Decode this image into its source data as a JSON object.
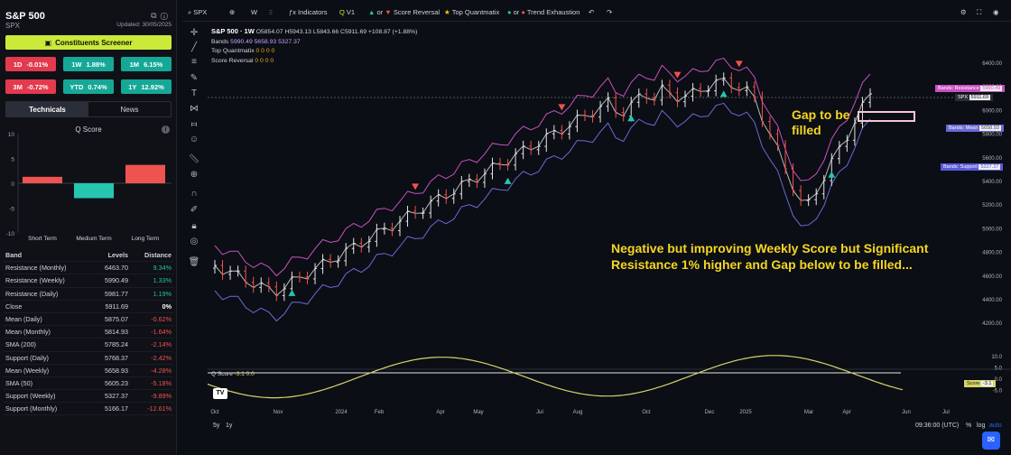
{
  "header": {
    "title": "S&P 500",
    "symbol": "SPX",
    "updated": "Updated: 30/05/2025"
  },
  "screener_label": "Constituents Screener",
  "performance": [
    {
      "period": "1D",
      "value": "-0.01%",
      "trend": "neg"
    },
    {
      "period": "1W",
      "value": "1.88%",
      "trend": "pos"
    },
    {
      "period": "1M",
      "value": "6.15%",
      "trend": "pos"
    },
    {
      "period": "3M",
      "value": "-0.72%",
      "trend": "neg"
    },
    {
      "period": "YTD",
      "value": "0.74%",
      "trend": "pos"
    },
    {
      "period": "1Y",
      "value": "12.92%",
      "trend": "pos"
    }
  ],
  "tabs": [
    {
      "label": "Technicals",
      "active": true
    },
    {
      "label": "News",
      "active": false
    }
  ],
  "qscore_panel": {
    "title": "Q Score",
    "y_ticks": [
      "10",
      "5",
      "0",
      "-5",
      "-10"
    ],
    "bars": [
      {
        "label": "Short Term",
        "value": 1.3,
        "color": "#ef5350"
      },
      {
        "label": "Medium Term",
        "value": -3.0,
        "color": "#26c6b0"
      },
      {
        "label": "Long Term",
        "value": 3.7,
        "color": "#ef5350"
      }
    ]
  },
  "table": {
    "headers": [
      "Band",
      "Levels",
      "Distance"
    ],
    "rows": [
      {
        "band": "Resistance (Monthly)",
        "level": "6463.70",
        "distance": "9.34%",
        "trend": "pos"
      },
      {
        "band": "Resistance (Weekly)",
        "level": "5990.49",
        "distance": "1.33%",
        "trend": "pos"
      },
      {
        "band": "Resistance (Daily)",
        "level": "5981.77",
        "distance": "1.19%",
        "trend": "pos"
      },
      {
        "band": "Close",
        "level": "5911.69",
        "distance": "0%",
        "trend": "zero"
      },
      {
        "band": "Mean (Daily)",
        "level": "5875.07",
        "distance": "-0.62%",
        "trend": "neg"
      },
      {
        "band": "Mean (Monthly)",
        "level": "5814.93",
        "distance": "-1.64%",
        "trend": "neg"
      },
      {
        "band": "SMA (200)",
        "level": "5785.24",
        "distance": "-2.14%",
        "trend": "neg"
      },
      {
        "band": "Support (Daily)",
        "level": "5768.37",
        "distance": "-2.42%",
        "trend": "neg"
      },
      {
        "band": "Mean (Weekly)",
        "level": "5658.93",
        "distance": "-4.28%",
        "trend": "neg"
      },
      {
        "band": "SMA (50)",
        "level": "5605.23",
        "distance": "-5.18%",
        "trend": "neg"
      },
      {
        "band": "Support (Weekly)",
        "level": "5327.37",
        "distance": "-9.89%",
        "trend": "neg"
      },
      {
        "band": "Support (Monthly)",
        "level": "5166.17",
        "distance": "-12.61%",
        "trend": "neg"
      }
    ]
  },
  "toolbar": {
    "symbol": "SPX",
    "interval": "W",
    "indicators": "Indicators",
    "version": "V1",
    "or1": "or",
    "score_reversal": "Score Reversal",
    "top_quantmatix": "Top Quantmatix",
    "or2": "or",
    "trend_exhaustion": "Trend Exhaustion"
  },
  "legend": {
    "title": "S&P 500 · 1W",
    "ohlc": "O5854.07 H5943.13 L5843.66 C5911.69 +108.87 (+1.88%)",
    "bands_label": "Bands",
    "bands_values": "5990.49  5658.93  5327.37",
    "top_quantmatix": "Top Quantmatix",
    "top_quantmatix_vals": "0  0  0  0",
    "score_reversal": "Score Reversal",
    "score_reversal_vals": "0  0  0  0"
  },
  "annotations": {
    "gap": "Gap to be filled",
    "main": "Negative but improving Weekly Score but Significant Resistance 1% higher and Gap below to be filled..."
  },
  "price_axis": [
    "6400.00",
    "6200.00",
    "6000.00",
    "5800.00",
    "5600.00",
    "5400.00",
    "5200.00",
    "5000.00",
    "4800.00",
    "4600.00",
    "4400.00",
    "4200.00"
  ],
  "price_tags": {
    "resistance_label": "Bands: Resistance",
    "resistance_value": "5990.49",
    "spx_label": "SPX",
    "spx_value": "5911.69",
    "mean_label": "Bands: Mean",
    "mean_value": "5658.93",
    "support_label": "Bands: Support",
    "support_value": "5327.37"
  },
  "oscillator": {
    "label": "Q Score",
    "values": "-3.1  0.0",
    "axis": [
      "10.0",
      "5.0",
      "0.0",
      "-5.0"
    ],
    "score_tag": "Score",
    "score_value": "-3.1"
  },
  "time_axis": [
    "Oct",
    "Nov",
    "2024",
    "Feb",
    "Apr",
    "May",
    "Jul",
    "Aug",
    "Oct",
    "Dec",
    "2025",
    "Mar",
    "Apr",
    "Jun",
    "Jul"
  ],
  "bottom": {
    "range1": "5y",
    "range2": "1y",
    "clock": "09:36:00 (UTC)",
    "pct": "%",
    "log": "log",
    "auto": "auto"
  },
  "colors": {
    "accent": "#c9ea38",
    "up": "#e6e6e6",
    "down": "#ef5350",
    "band_upper": "#c850c0",
    "band_mid": "#b8b8b8",
    "band_lower": "#6a6ad6",
    "oscillator": "#d4d46a",
    "annotation": "#f5d623"
  }
}
